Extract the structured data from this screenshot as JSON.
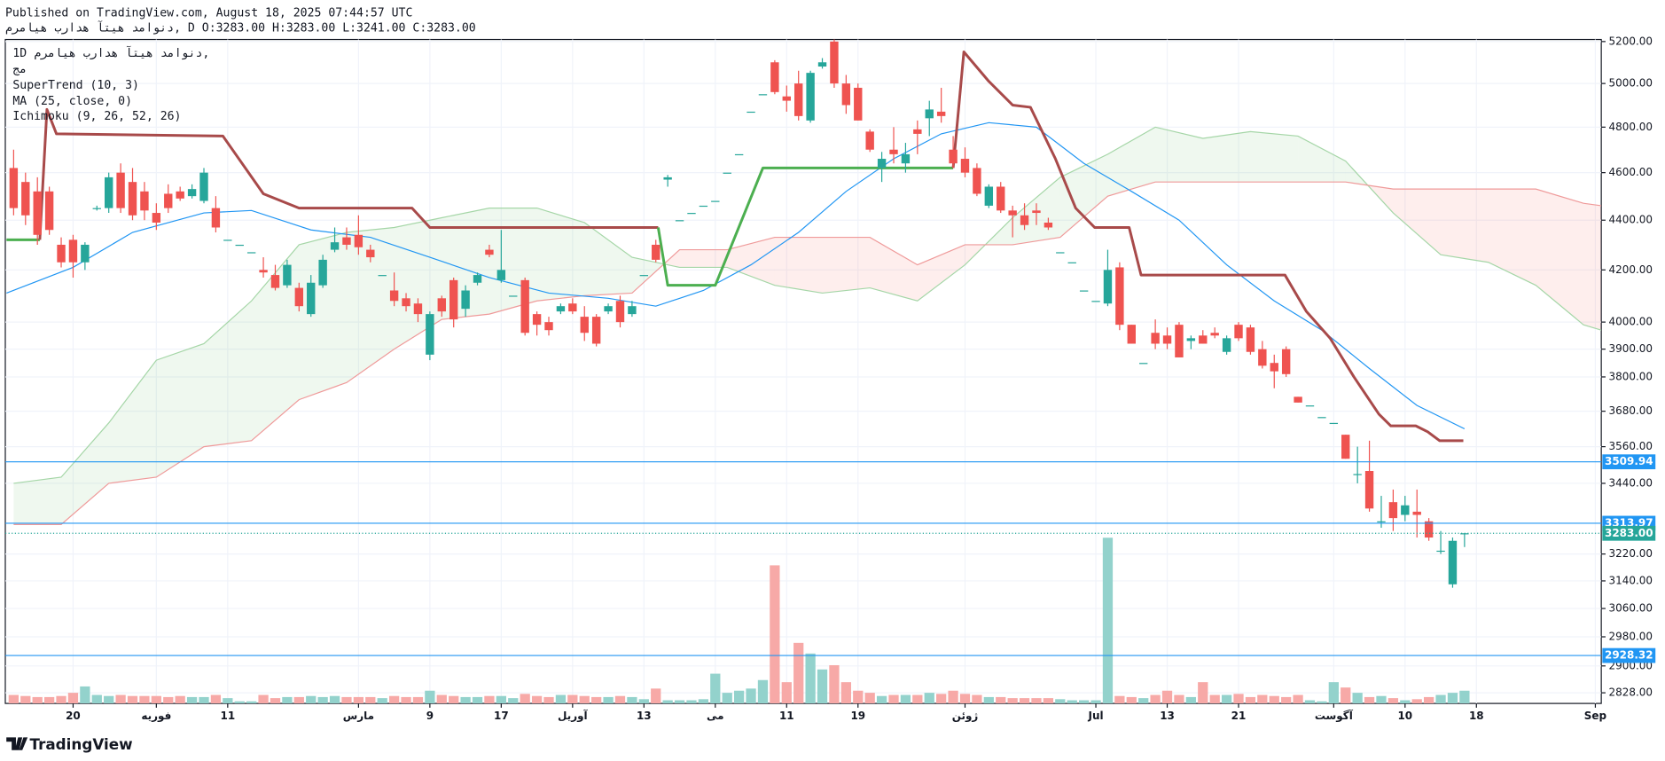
{
  "header": {
    "published": "Published on TradingView.com, August 18, 2025 07:44:57 UTC",
    "symbol_line": "دنوامد هیتآ هدارب هیامرم, D O:3283.00 H:3283.00 L:3241.00 C:3283.00"
  },
  "footer": {
    "brand": "TradingView"
  },
  "chart_data": {
    "type": "candlestick",
    "interval": "1D",
    "symbol": "دنوامد هیتآ هدارب هیامرم,",
    "volume_name": "مج",
    "log_scale": true,
    "grid": true,
    "up_color": "#26a69a",
    "down_color": "#ef5350",
    "volume_up_color": "#93d2cc",
    "volume_down_color": "#f7a9a7",
    "xlim": [
      -0.7,
      133.5
    ],
    "ylim": [
      2800,
      5210
    ],
    "volume_ylim": [
      0,
      160
    ],
    "xticks": [
      {
        "value": 5,
        "label": "20"
      },
      {
        "value": 12,
        "label": "فوریه"
      },
      {
        "value": 18,
        "label": "11"
      },
      {
        "value": 29,
        "label": "مارس"
      },
      {
        "value": 35,
        "label": "9"
      },
      {
        "value": 41,
        "label": "17"
      },
      {
        "value": 47,
        "label": "آوریل"
      },
      {
        "value": 53,
        "label": "13"
      },
      {
        "value": 59,
        "label": "می"
      },
      {
        "value": 65,
        "label": "11"
      },
      {
        "value": 71,
        "label": "19"
      },
      {
        "value": 80,
        "label": "ژوئن"
      },
      {
        "value": 91,
        "label": "Jul"
      },
      {
        "value": 97,
        "label": "13"
      },
      {
        "value": 103,
        "label": "21"
      },
      {
        "value": 111,
        "label": "آگوست"
      },
      {
        "value": 117,
        "label": "10"
      },
      {
        "value": 123,
        "label": "18"
      },
      {
        "value": 133,
        "label": "Sep"
      }
    ],
    "yticks": [
      {
        "value": 5200,
        "label": "5200.00"
      },
      {
        "value": 5000,
        "label": "5000.00"
      },
      {
        "value": 4800,
        "label": "4800.00"
      },
      {
        "value": 4600,
        "label": "4600.00"
      },
      {
        "value": 4400,
        "label": "4400.00"
      },
      {
        "value": 4200,
        "label": "4200.00"
      },
      {
        "value": 4000,
        "label": "4000.00"
      },
      {
        "value": 3900,
        "label": "3900.00"
      },
      {
        "value": 3800,
        "label": "3800.00"
      },
      {
        "value": 3680,
        "label": "3680.00"
      },
      {
        "value": 3560,
        "label": "3560.00"
      },
      {
        "value": 3440,
        "label": "3440.00"
      },
      {
        "value": 3220,
        "label": "3220.00"
      },
      {
        "value": 3140,
        "label": "3140.00"
      },
      {
        "value": 3060,
        "label": "3060.00"
      },
      {
        "value": 2980,
        "label": "2980.00"
      },
      {
        "value": 2900,
        "label": "2900.00"
      },
      {
        "value": 2828,
        "label": "2828.00"
      }
    ],
    "open": [
      4620,
      4560,
      4520,
      4520,
      4300,
      4320,
      4230,
      4450,
      4450,
      4600,
      4560,
      4520,
      4430,
      4510,
      4520,
      4500,
      4480,
      4450,
      4320,
      4300,
      4270,
      4200,
      4180,
      4140,
      4130,
      4030,
      4140,
      4280,
      4330,
      4340,
      4280,
      4180,
      4120,
      4090,
      4070,
      3880,
      4090,
      4160,
      4050,
      4150,
      4280,
      4160,
      4100,
      4160,
      4030,
      4000,
      4040,
      4070,
      4020,
      4020,
      4040,
      4080,
      4030,
      4180,
      4300,
      4570,
      4400,
      4430,
      4460,
      4480,
      4600,
      4680,
      4870,
      4950,
      5100,
      4940,
      5000,
      4830,
      5080,
      5200,
      5000,
      4980,
      4780,
      4620,
      4700,
      4640,
      4790,
      4840,
      4870,
      4700,
      4660,
      4620,
      4460,
      4540,
      4440,
      4420,
      4440,
      4390,
      4270,
      4230,
      4120,
      4080,
      4070,
      4210,
      3990,
      3850,
      3960,
      3950,
      3990,
      3930,
      3950,
      3960,
      3890,
      3990,
      3980,
      3900,
      3850,
      3900,
      3730,
      3700,
      3660,
      3640,
      3600,
      3470,
      3480,
      3320,
      3380,
      3340,
      3350,
      3320,
      3230,
      3130,
      3283
    ],
    "high": [
      4700,
      4600,
      4580,
      4540,
      4330,
      4340,
      4310,
      4460,
      4600,
      4640,
      4620,
      4560,
      4470,
      4550,
      4540,
      4550,
      4620,
      4500,
      4320,
      4300,
      4270,
      4250,
      4220,
      4240,
      4150,
      4180,
      4260,
      4370,
      4370,
      4420,
      4300,
      4180,
      4190,
      4110,
      4090,
      4040,
      4100,
      4170,
      4140,
      4190,
      4300,
      4360,
      4100,
      4170,
      4040,
      4020,
      4070,
      4090,
      4060,
      4030,
      4070,
      4100,
      4080,
      4180,
      4320,
      4590,
      4400,
      4430,
      4460,
      4480,
      4600,
      4680,
      4870,
      4950,
      5110,
      4990,
      5060,
      5060,
      5120,
      5210,
      5040,
      5000,
      4790,
      4690,
      4800,
      4730,
      4830,
      4920,
      4980,
      4760,
      4710,
      4640,
      4550,
      4560,
      4460,
      4470,
      4470,
      4410,
      4270,
      4230,
      4120,
      4080,
      4280,
      4230,
      3990,
      3850,
      4010,
      3980,
      4000,
      3950,
      3970,
      3980,
      3950,
      4000,
      3990,
      3930,
      3880,
      3910,
      3730,
      3700,
      3660,
      3640,
      3600,
      3560,
      3580,
      3400,
      3420,
      3400,
      3420,
      3330,
      3290,
      3270,
      3283
    ],
    "low": [
      4420,
      4380,
      4300,
      4340,
      4210,
      4170,
      4200,
      4440,
      4430,
      4430,
      4400,
      4400,
      4360,
      4430,
      4480,
      4490,
      4470,
      4350,
      4320,
      4300,
      4270,
      4170,
      4120,
      4130,
      4040,
      4020,
      4130,
      4270,
      4280,
      4260,
      4230,
      4180,
      4060,
      4040,
      4000,
      3860,
      4020,
      3980,
      4020,
      4140,
      4250,
      4150,
      4100,
      3950,
      3950,
      3950,
      4030,
      4030,
      3930,
      3910,
      4030,
      3980,
      4020,
      4180,
      4230,
      4540,
      4400,
      4430,
      4460,
      4480,
      4600,
      4680,
      4870,
      4950,
      4950,
      4870,
      4830,
      4820,
      5070,
      4980,
      4860,
      4830,
      4690,
      4560,
      4640,
      4600,
      4680,
      4760,
      4820,
      4620,
      4580,
      4500,
      4450,
      4430,
      4330,
      4360,
      4380,
      4360,
      4270,
      4230,
      4120,
      4080,
      4060,
      3970,
      3920,
      3850,
      3900,
      3900,
      3870,
      3900,
      3920,
      3940,
      3880,
      3930,
      3880,
      3830,
      3760,
      3800,
      3710,
      3700,
      3660,
      3640,
      3520,
      3440,
      3350,
      3300,
      3290,
      3320,
      3270,
      3260,
      3220,
      3120,
      3241
    ],
    "close": [
      4450,
      4420,
      4340,
      4360,
      4230,
      4230,
      4300,
      4450,
      4580,
      4450,
      4420,
      4440,
      4390,
      4450,
      4490,
      4530,
      4600,
      4370,
      4320,
      4300,
      4270,
      4190,
      4130,
      4220,
      4060,
      4150,
      4240,
      4310,
      4300,
      4290,
      4250,
      4180,
      4080,
      4060,
      4030,
      4030,
      4040,
      4010,
      4120,
      4180,
      4260,
      4200,
      4100,
      3960,
      3990,
      3970,
      4060,
      4040,
      3960,
      3920,
      4060,
      4000,
      4060,
      4180,
      4240,
      4580,
      4400,
      4430,
      4460,
      4480,
      4600,
      4680,
      4870,
      4950,
      4960,
      4920,
      4850,
      5050,
      5100,
      5000,
      4900,
      4830,
      4700,
      4660,
      4680,
      4680,
      4770,
      4880,
      4850,
      4640,
      4600,
      4510,
      4540,
      4440,
      4420,
      4380,
      4430,
      4370,
      4270,
      4230,
      4120,
      4080,
      4200,
      3990,
      3920,
      3850,
      3920,
      3920,
      3870,
      3940,
      3920,
      3950,
      3940,
      3940,
      3890,
      3840,
      3820,
      3810,
      3710,
      3700,
      3660,
      3640,
      3520,
      3470,
      3360,
      3320,
      3330,
      3370,
      3340,
      3270,
      3230,
      3260,
      3283
    ],
    "volume": [
      8,
      7,
      6,
      6,
      7,
      10,
      16,
      8,
      7,
      8,
      7,
      7,
      7,
      6,
      7,
      6,
      6,
      8,
      5,
      2,
      2,
      8,
      5,
      6,
      6,
      7,
      6,
      7,
      6,
      6,
      6,
      5,
      7,
      6,
      6,
      12,
      8,
      7,
      6,
      6,
      7,
      7,
      5,
      9,
      7,
      6,
      8,
      8,
      7,
      6,
      6,
      7,
      6,
      4,
      14,
      3,
      3,
      3,
      4,
      28,
      10,
      12,
      14,
      22,
      130,
      20,
      57,
      47,
      32,
      36,
      20,
      12,
      10,
      7,
      8,
      8,
      8,
      10,
      9,
      12,
      9,
      8,
      6,
      6,
      5,
      5,
      5,
      5,
      4,
      3,
      3,
      3,
      156,
      7,
      6,
      5,
      8,
      12,
      8,
      6,
      20,
      8,
      8,
      9,
      6,
      8,
      7,
      6,
      8,
      3,
      2,
      20,
      15,
      10,
      6,
      7,
      5,
      3,
      4,
      6,
      8,
      10,
      12
    ],
    "supertrend": {
      "name": "SuperTrend (10, 3)",
      "segments": [
        {
          "color": "#4caf50",
          "x": [
            -0.6,
            2.2
          ],
          "values": [
            4320,
            4320
          ]
        },
        {
          "color": "#a84a4a",
          "x": [
            2.2,
            2.8,
            3.6,
            17.6,
            21.0,
            24.0,
            33.5,
            35.0,
            54.2
          ],
          "values": [
            4320,
            4880,
            4770,
            4760,
            4510,
            4450,
            4450,
            4370,
            4370
          ]
        },
        {
          "color": "#4caf50",
          "x": [
            54.2,
            55.0,
            59.0,
            63.0,
            79.0
          ],
          "values": [
            4370,
            4140,
            4140,
            4620,
            4620
          ]
        },
        {
          "color": "#a84a4a",
          "x": [
            79.0,
            79.9,
            82.0,
            84.0,
            85.5,
            87.6,
            89.3,
            90.9,
            93.8,
            94.8,
            106.9,
            108.7,
            110.7,
            112.7,
            114.8,
            115.8,
            117.9,
            118.9,
            119.9,
            121.9
          ],
          "values": [
            4620,
            5150,
            5010,
            4900,
            4890,
            4660,
            4450,
            4370,
            4370,
            4180,
            4180,
            4040,
            3940,
            3800,
            3670,
            3630,
            3630,
            3610,
            3580,
            3580
          ]
        }
      ]
    },
    "ma": {
      "name": "MA (25, close, 0)",
      "color": "#2196f3",
      "x": [
        -0.6,
        5,
        10,
        16,
        20,
        25,
        30,
        35,
        40,
        45,
        50,
        54,
        58,
        62,
        66,
        70,
        74,
        78,
        82,
        86,
        90,
        94,
        98,
        102,
        106,
        110,
        114,
        118,
        122
      ],
      "values": [
        4110,
        4210,
        4350,
        4430,
        4440,
        4360,
        4330,
        4250,
        4170,
        4110,
        4090,
        4060,
        4120,
        4220,
        4350,
        4520,
        4660,
        4770,
        4820,
        4800,
        4640,
        4520,
        4400,
        4220,
        4080,
        3970,
        3830,
        3700,
        3620
      ]
    },
    "ichimoku": {
      "name": "Ichimoku (9, 26, 52, 26)",
      "span_a_color": "#a5d6a7",
      "span_b_color": "#ef9a9a",
      "up_fill": "#4caf50",
      "down_fill": "#f44336",
      "x": [
        0,
        4,
        8,
        12,
        16,
        20,
        24,
        28,
        32,
        36,
        40,
        44,
        48,
        52,
        56,
        60,
        64,
        68,
        72,
        76,
        80,
        84,
        88,
        92,
        96,
        100,
        104,
        108,
        112,
        116,
        120,
        124,
        128,
        132,
        133.5
      ],
      "span_a": [
        3440,
        3460,
        3640,
        3860,
        3920,
        4080,
        4300,
        4350,
        4370,
        4410,
        4450,
        4450,
        4390,
        4250,
        4210,
        4210,
        4140,
        4110,
        4130,
        4080,
        4220,
        4410,
        4580,
        4680,
        4800,
        4750,
        4780,
        4760,
        4650,
        4430,
        4260,
        4230,
        4140,
        3990,
        3970
      ],
      "span_b": [
        3310,
        3310,
        3440,
        3460,
        3560,
        3580,
        3720,
        3780,
        3900,
        4010,
        4030,
        4080,
        4100,
        4110,
        4280,
        4280,
        4330,
        4330,
        4330,
        4220,
        4300,
        4300,
        4330,
        4500,
        4560,
        4560,
        4560,
        4560,
        4560,
        4530,
        4530,
        4530,
        4530,
        4470,
        4460
      ]
    },
    "price_lines": [
      {
        "value": 3509.94,
        "color": "#2196f3"
      },
      {
        "value": 3313.97,
        "color": "#2196f3"
      },
      {
        "value": 2928.32,
        "color": "#2196f3"
      }
    ],
    "last_price": {
      "value": 3283,
      "label": "3283.00",
      "color": "#26a69a"
    }
  }
}
